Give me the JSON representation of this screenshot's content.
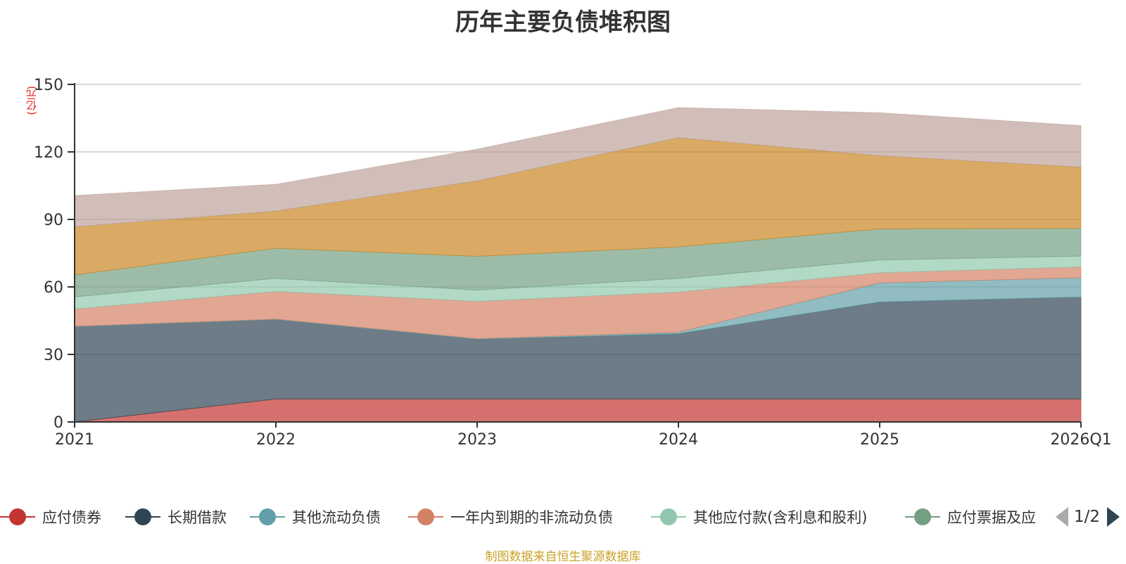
{
  "chart_data": {
    "type": "area",
    "stacked": true,
    "title": "历年主要负债堆积图",
    "ylabel": "(亿元)",
    "xlabel": "",
    "categories": [
      "2021",
      "2022",
      "2023",
      "2024",
      "2025",
      "2026Q1"
    ],
    "ylim": [
      0,
      150
    ],
    "yticks": [
      0,
      30,
      60,
      90,
      120,
      150
    ],
    "grid": true,
    "legend_position": "bottom",
    "series": [
      {
        "name": "应付债券",
        "color": "#c23531",
        "values": [
          0,
          10.2,
          10.2,
          10.2,
          10.2,
          10.2
        ]
      },
      {
        "name": "长期借款",
        "color": "#2f4554",
        "values": [
          42.3,
          35.3,
          26.5,
          29.0,
          43.1,
          45.3
        ]
      },
      {
        "name": "其他流动负债",
        "color": "#61a0a8",
        "values": [
          0.2,
          0.2,
          0.3,
          0.7,
          8.5,
          8.6
        ]
      },
      {
        "name": "一年内到期的非流动负债",
        "color": "#d48265",
        "values": [
          7.7,
          12.3,
          16.6,
          17.8,
          4.5,
          4.8
        ]
      },
      {
        "name": "其他应付款(含利息和股利)",
        "color": "#91c7ae",
        "values": [
          5.4,
          5.8,
          5.0,
          6.1,
          5.7,
          4.8
        ]
      },
      {
        "name": "应付票据及应付账款",
        "color": "#749f83",
        "values": [
          9.7,
          13.4,
          15.0,
          14.0,
          13.8,
          12.4
        ]
      },
      {
        "name": "",
        "color": "#ca8622",
        "values": [
          21.4,
          16.5,
          33.5,
          48.5,
          32.5,
          27.1
        ]
      },
      {
        "name": "",
        "color": "#bda29a",
        "values": [
          13.9,
          11.9,
          14.1,
          13.4,
          19.1,
          18.5
        ]
      }
    ]
  },
  "legend": {
    "items": [
      {
        "label": "应付债券",
        "color": "#c23531"
      },
      {
        "label": "长期借款",
        "color": "#2f4554"
      },
      {
        "label": "其他流动负债",
        "color": "#61a0a8"
      },
      {
        "label": "一年内到期的非流动负债",
        "color": "#d48265"
      },
      {
        "label": "其他应付款(含利息和股利)",
        "color": "#91c7ae"
      },
      {
        "label": "应付票据及应",
        "color": "#749f83"
      }
    ],
    "page": "1/2"
  },
  "source": "制图数据来自恒生聚源数据库"
}
